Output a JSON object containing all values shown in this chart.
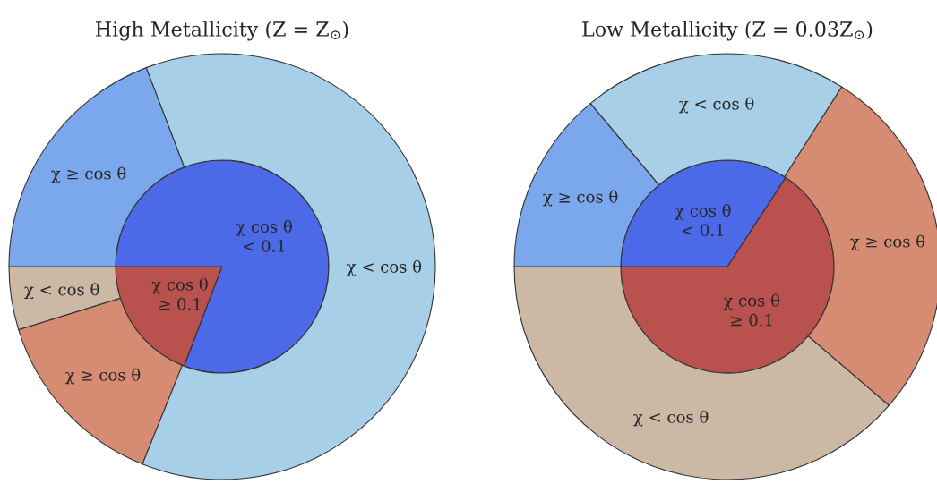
{
  "chart_data": [
    {
      "type": "pie",
      "title": "High Metallicity (Z = Z$_{⊙}$)",
      "series": [
        {
          "type": "pie",
          "values": [
            19.2,
            80.8
          ],
          "colors": [
            "#b9524f",
            "#4c6ae8"
          ],
          "value_labels": [
            "χ cos θ\n≥ 0.1",
            "χ cos θ\n< 0.1"
          ]
        },
        {
          "type": "donut",
          "values": [
            4.8,
            14.1,
            61.9,
            19.2
          ],
          "colors": [
            "#cbb8a5",
            "#d68c72",
            "#a8cfe8",
            "#7ba7ec"
          ],
          "value_labels": [
            "χ < cos θ",
            "χ ≥ cos θ",
            "χ < cos θ",
            "χ ≥ cos θ"
          ]
        }
      ]
    },
    {
      "type": "pie",
      "title": "Low Metallicity (Z = 0.03Z$_{⊙}$)",
      "series": [
        {
          "type": "pie",
          "values": [
            65.8,
            34.2
          ],
          "colors": [
            "#b9524f",
            "#4c6ae8"
          ],
          "value_labels": [
            "χ cos θ\n≥ 0.1",
            "χ cos θ\n< 0.1"
          ]
        },
        {
          "type": "donut",
          "values": [
            38.7,
            27.3,
            20.1,
            13.9
          ],
          "colors": [
            "#cbb8a5",
            "#d68c72",
            "#a8cfe8",
            "#7ba7ec"
          ],
          "value_labels": [
            "χ < cos θ",
            "χ ≥ cos θ",
            "χ < cos θ",
            "χ ≥ cos θ"
          ]
        }
      ]
    }
  ]
}
